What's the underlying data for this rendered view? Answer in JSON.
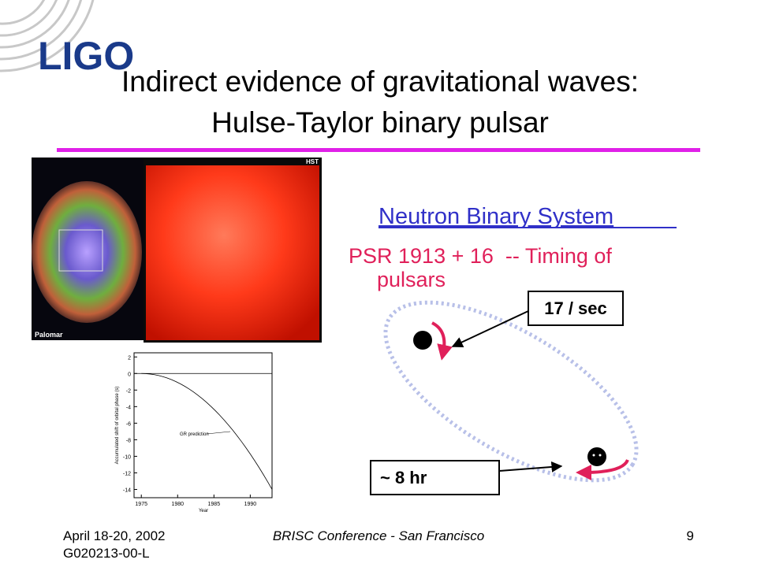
{
  "logo": "LIGO",
  "title": {
    "line1": "Indirect evidence of gravitational waves:",
    "line2": "Hulse-Taylor binary pulsar"
  },
  "images": {
    "palomar": "Palomar",
    "hst": "HST"
  },
  "heading": "Neutron Binary System",
  "description": {
    "line1": "PSR 1913 + 16  -- Timing of",
    "line2": "pulsars"
  },
  "callouts": {
    "period": "17 / sec",
    "orbit": "~ 8 hr"
  },
  "plot": {
    "ylabel": "Accumulated shift of orbital phase (s)",
    "xlabel": "Year",
    "annotation": "GR prediction",
    "ylim": [
      -15,
      2.5
    ],
    "yticks": [
      2,
      0,
      -2,
      -4,
      -6,
      -8,
      -10,
      -12,
      -14
    ],
    "xlim": [
      1974,
      1993
    ],
    "xticks": [
      1975,
      1980,
      1985,
      1990
    ]
  },
  "footer": {
    "date": "April 18-20, 2002",
    "doc_id": "G020213-00-L",
    "conference": "BRISC Conference - San Francisco",
    "page": "9"
  }
}
